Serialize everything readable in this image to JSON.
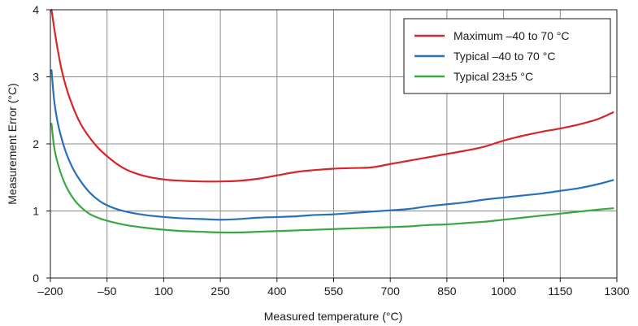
{
  "chart_data": {
    "type": "line",
    "xlabel": "Measured temperature (°C)",
    "ylabel": "Measurement Error (°C)",
    "xlim": [
      -200,
      1300
    ],
    "ylim": [
      0,
      4
    ],
    "x_ticks": [
      -200,
      -50,
      100,
      250,
      400,
      550,
      700,
      850,
      1000,
      1150,
      1300
    ],
    "x_tick_labels": [
      "–200",
      "–50",
      "100",
      "250",
      "400",
      "550",
      "700",
      "850",
      "1000",
      "1150",
      "1300"
    ],
    "y_ticks": [
      0,
      1,
      2,
      3,
      4
    ],
    "y_tick_labels": [
      "0",
      "1",
      "2",
      "3",
      "4"
    ],
    "grid": true,
    "legend_position": "top-right",
    "series": [
      {
        "name": "Maximum –40 to 70 °C",
        "color": "#d7262b",
        "x": [
          -197,
          -185,
          -170,
          -150,
          -120,
          -80,
          -40,
          0,
          50,
          100,
          150,
          200,
          250,
          300,
          350,
          400,
          450,
          500,
          550,
          600,
          650,
          700,
          750,
          800,
          850,
          900,
          950,
          1000,
          1050,
          1100,
          1150,
          1200,
          1250,
          1290
        ],
        "y": [
          4.0,
          3.55,
          3.1,
          2.7,
          2.3,
          1.98,
          1.77,
          1.62,
          1.52,
          1.47,
          1.45,
          1.44,
          1.44,
          1.45,
          1.48,
          1.53,
          1.58,
          1.61,
          1.63,
          1.64,
          1.65,
          1.7,
          1.75,
          1.8,
          1.85,
          1.9,
          1.96,
          2.05,
          2.12,
          2.18,
          2.23,
          2.29,
          2.37,
          2.47
        ]
      },
      {
        "name": "Typical –40 to 70 °C",
        "color": "#2871b8",
        "x": [
          -197,
          -190,
          -180,
          -165,
          -150,
          -130,
          -100,
          -70,
          -40,
          0,
          50,
          100,
          150,
          200,
          250,
          300,
          350,
          400,
          450,
          500,
          550,
          600,
          650,
          700,
          750,
          800,
          850,
          900,
          950,
          1000,
          1050,
          1100,
          1150,
          1200,
          1250,
          1290
        ],
        "y": [
          3.1,
          2.65,
          2.3,
          1.98,
          1.75,
          1.53,
          1.3,
          1.15,
          1.06,
          0.99,
          0.94,
          0.91,
          0.89,
          0.88,
          0.87,
          0.88,
          0.9,
          0.91,
          0.92,
          0.94,
          0.95,
          0.97,
          0.99,
          1.01,
          1.03,
          1.07,
          1.1,
          1.13,
          1.17,
          1.2,
          1.23,
          1.26,
          1.3,
          1.34,
          1.4,
          1.46
        ]
      },
      {
        "name": "Typical 23±5 °C",
        "color": "#3aa743",
        "x": [
          -197,
          -190,
          -180,
          -165,
          -150,
          -130,
          -100,
          -70,
          -40,
          0,
          50,
          100,
          150,
          200,
          250,
          300,
          350,
          400,
          450,
          500,
          550,
          600,
          650,
          700,
          750,
          800,
          850,
          900,
          950,
          1000,
          1050,
          1100,
          1150,
          1200,
          1250,
          1290
        ],
        "y": [
          2.3,
          1.95,
          1.7,
          1.45,
          1.28,
          1.12,
          0.97,
          0.89,
          0.84,
          0.79,
          0.75,
          0.72,
          0.7,
          0.69,
          0.68,
          0.68,
          0.69,
          0.7,
          0.71,
          0.72,
          0.73,
          0.74,
          0.75,
          0.76,
          0.77,
          0.79,
          0.8,
          0.82,
          0.84,
          0.87,
          0.9,
          0.93,
          0.96,
          0.99,
          1.02,
          1.04
        ]
      }
    ]
  }
}
